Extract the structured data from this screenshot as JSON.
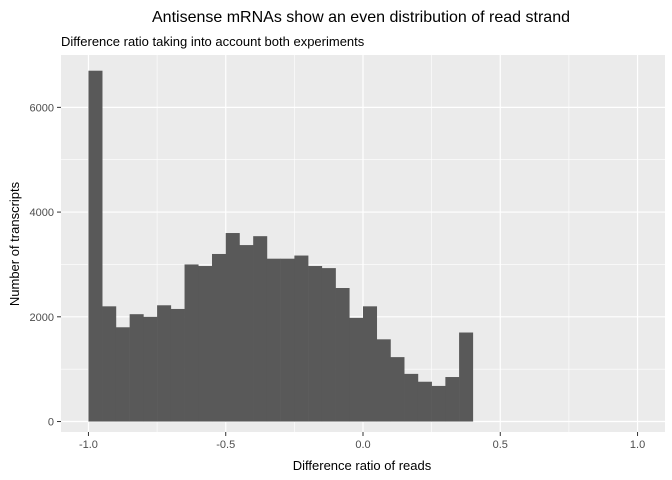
{
  "chart_data": {
    "type": "bar",
    "title": "Antisense mRNAs show an even distribution of read strand",
    "subtitle": "Difference ratio taking into account both experiments",
    "xlabel": "Difference ratio of reads",
    "ylabel": "Number of transcripts",
    "xlim": [
      -1.1,
      1.1
    ],
    "ylim": [
      -200,
      7000
    ],
    "xticks": [
      -1.0,
      -0.5,
      0.0,
      0.5,
      1.0
    ],
    "xtick_labels": [
      "-1.0",
      "-0.5",
      "0.0",
      "0.5",
      "1.0"
    ],
    "yticks": [
      0,
      2000,
      4000,
      6000
    ],
    "ytick_labels": [
      "0",
      "2000",
      "4000",
      "6000"
    ],
    "bin_start": -1.0,
    "bin_width": 0.05,
    "values": [
      6700,
      2200,
      1800,
      2050,
      2000,
      2220,
      2150,
      3000,
      2970,
      3200,
      3600,
      3370,
      3540,
      3110,
      3110,
      3170,
      2970,
      2930,
      2550,
      1980,
      2200,
      1570,
      1230,
      910,
      760,
      680,
      850,
      1700
    ],
    "bar_color": "#595959",
    "panel_background": "#ebebeb",
    "grid": true,
    "legend": "none"
  }
}
